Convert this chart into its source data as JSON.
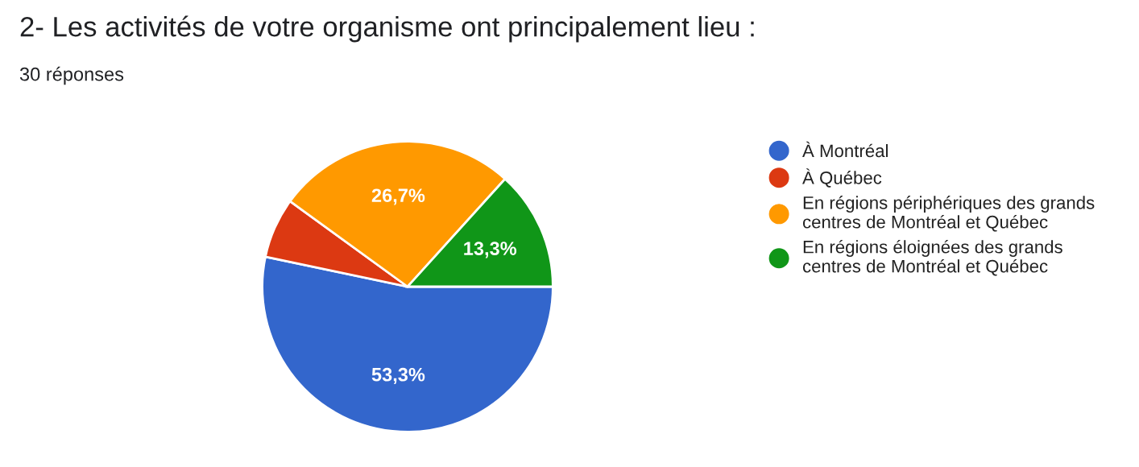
{
  "chart_data": {
    "type": "pie",
    "title": "2- Les activités de votre organisme ont principalement lieu :",
    "subtitle": "30 réponses",
    "categories": [
      "À Montréal",
      "À Québec",
      "En régions périphériques des grands centres de Montréal et Québec",
      "En régions éloignées des grands centres de Montréal et Québec"
    ],
    "values": [
      53.3,
      6.7,
      26.7,
      13.3
    ],
    "colors": [
      "#3366cc",
      "#dc3912",
      "#ff9900",
      "#109618"
    ],
    "value_labels": [
      "53,3%",
      null,
      "26,7%",
      "13,3%"
    ],
    "legend": "right"
  }
}
